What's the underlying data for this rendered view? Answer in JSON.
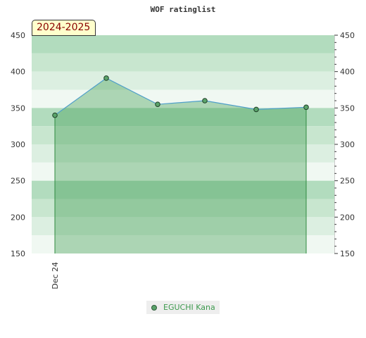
{
  "chart_data": {
    "type": "area",
    "title": "WOF ratinglist",
    "season_label": "2024-2025",
    "x_labels": [
      "Dec 24"
    ],
    "y_ticks": [
      150,
      200,
      250,
      300,
      350,
      400,
      450
    ],
    "ylim": [
      150,
      450
    ],
    "grid": true,
    "legend_position": "bottom",
    "series": [
      {
        "name": "EGUCHI Kana",
        "color": "#3d9a4e",
        "line_color": "#4f9fc9",
        "marker_color": "#5aa36a",
        "values": [
          340,
          391,
          355,
          360,
          348,
          351
        ]
      }
    ]
  }
}
